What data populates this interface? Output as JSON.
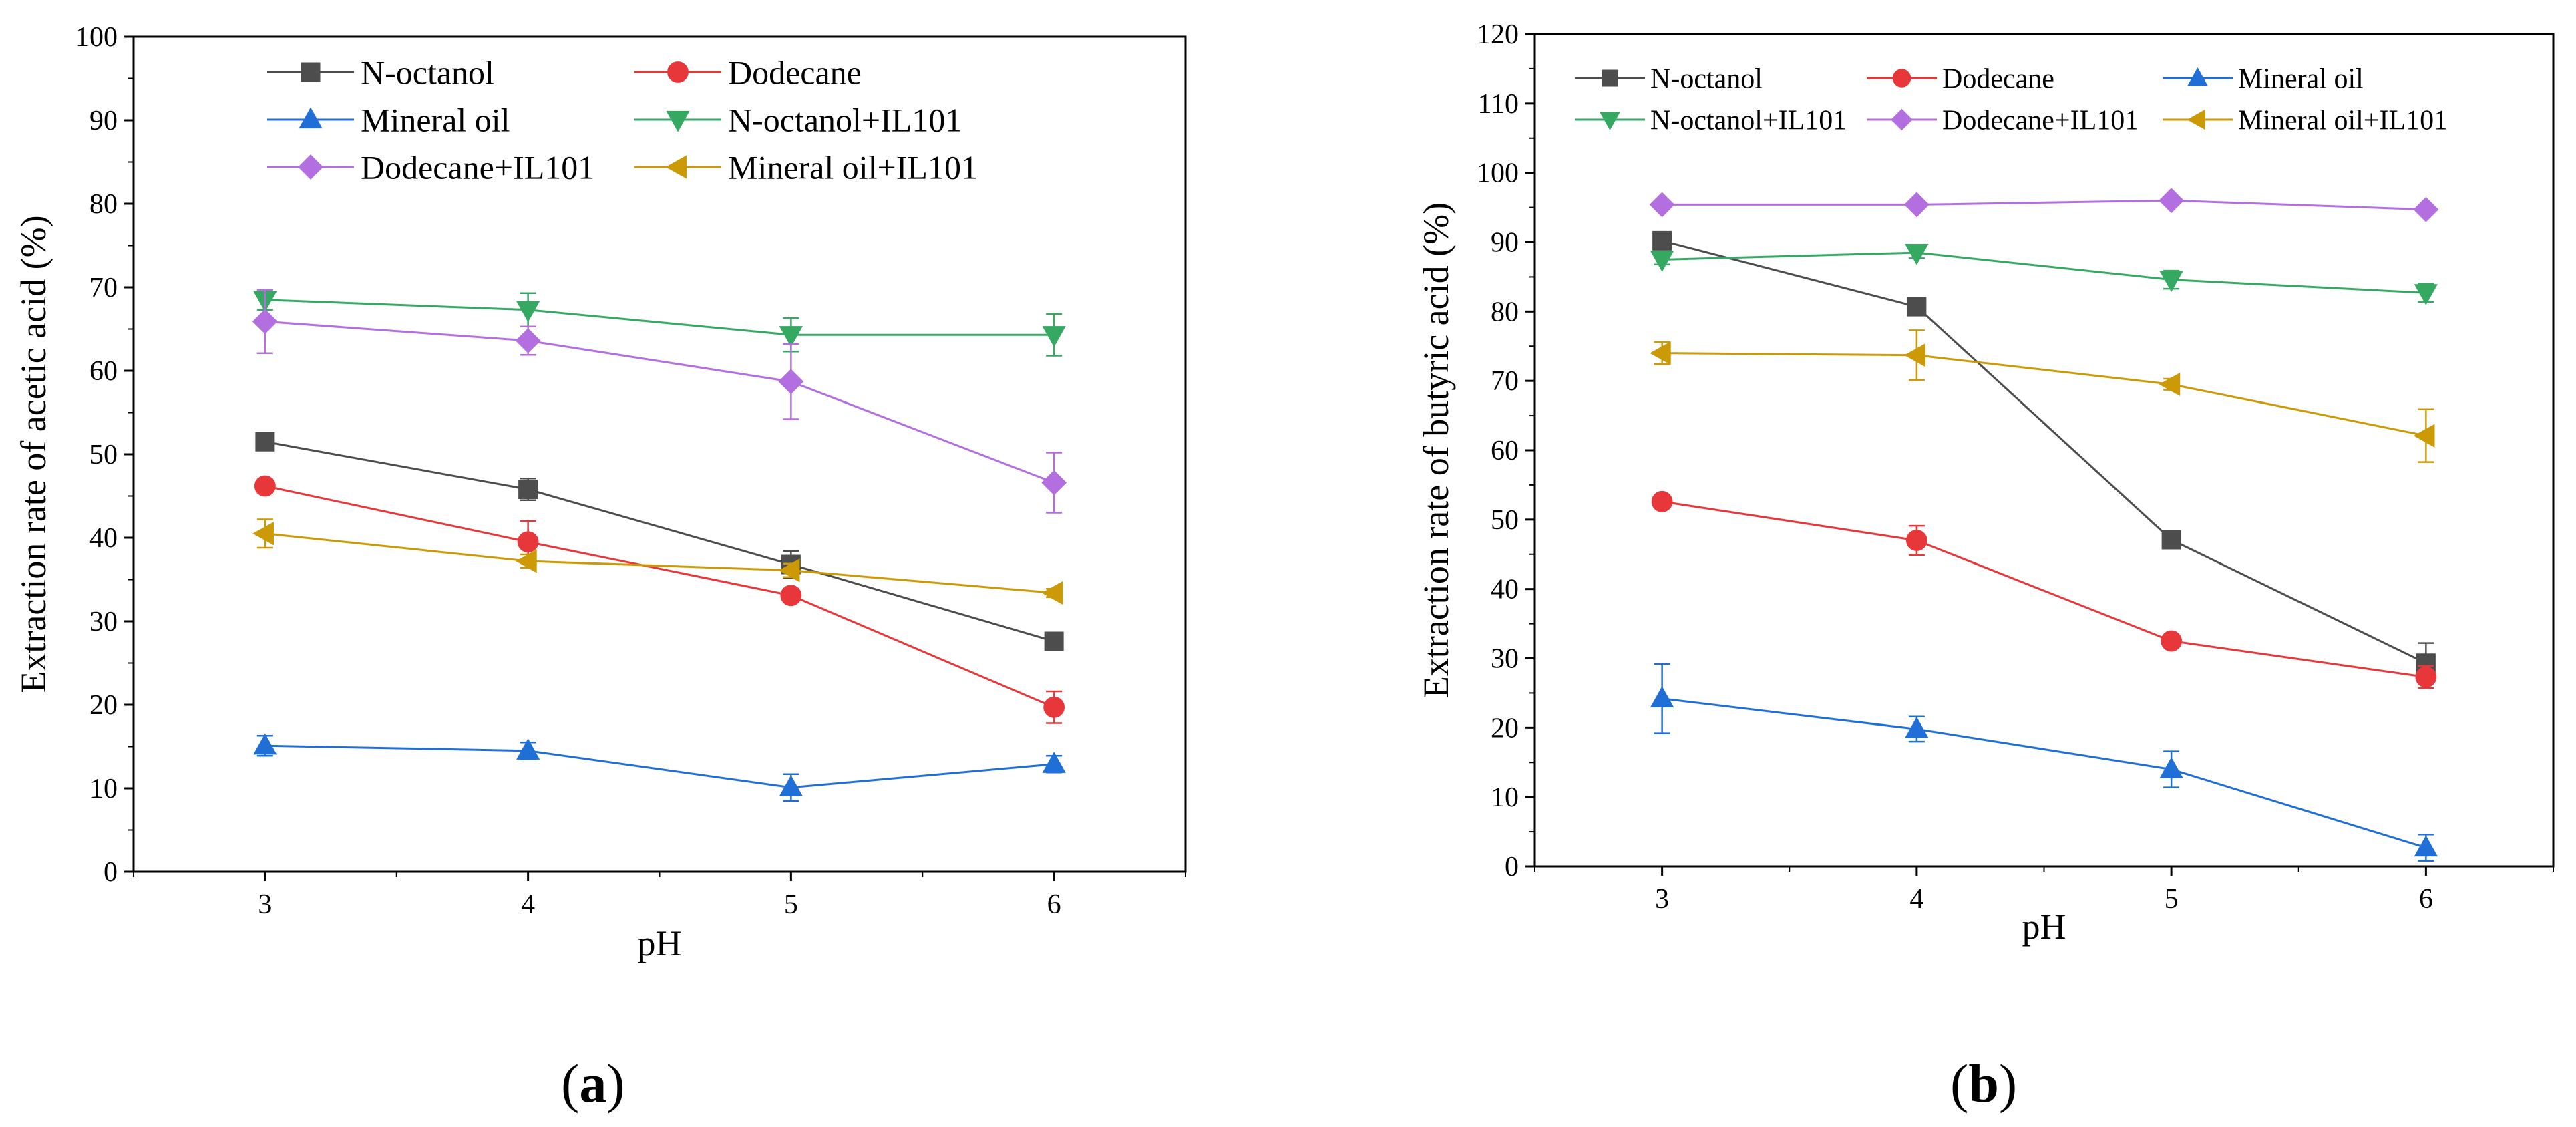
{
  "chart_data": [
    {
      "type": "line",
      "panel": "(a)",
      "panel_letter": "a",
      "xlabel": "pH",
      "ylabel": "Extraction rate of acetic acid (%)",
      "x": [
        3,
        4,
        5,
        6
      ],
      "xlim": [
        2.5,
        6.5
      ],
      "ylim": [
        0,
        100
      ],
      "yticks": [
        0,
        10,
        20,
        30,
        40,
        50,
        60,
        70,
        80,
        90,
        100
      ],
      "series": [
        {
          "name": "N-octanol",
          "color": "#4d4d4d",
          "marker": "square",
          "values": [
            51.5,
            45.8,
            36.8,
            27.6
          ],
          "errors": [
            0.8,
            1.3,
            1.6,
            0.6
          ]
        },
        {
          "name": "Dodecane",
          "color": "#e8373a",
          "marker": "circle",
          "values": [
            46.2,
            39.5,
            33.1,
            19.7
          ],
          "errors": [
            0.8,
            2.5,
            0.8,
            1.9
          ]
        },
        {
          "name": "Mineral oil",
          "color": "#1f6fd6",
          "marker": "triangle-up",
          "values": [
            15.1,
            14.5,
            10.1,
            12.9
          ],
          "errors": [
            1.2,
            1.0,
            1.6,
            1.0
          ]
        },
        {
          "name": "N-octanol+IL101",
          "color": "#35a862",
          "marker": "triangle-down",
          "values": [
            68.5,
            67.3,
            64.3,
            64.3
          ],
          "errors": [
            1.2,
            2.0,
            2.0,
            2.5
          ]
        },
        {
          "name": "Dodecane+IL101",
          "color": "#b36fe0",
          "marker": "diamond",
          "values": [
            65.9,
            63.6,
            58.7,
            46.6
          ],
          "errors": [
            3.8,
            1.7,
            4.5,
            3.6
          ]
        },
        {
          "name": "Mineral oil+IL101",
          "color": "#cc9a06",
          "marker": "triangle-left",
          "values": [
            40.5,
            37.2,
            36.1,
            33.4
          ],
          "errors": [
            1.7,
            0.8,
            0.8,
            0.5
          ]
        }
      ]
    },
    {
      "type": "line",
      "panel": "(b)",
      "panel_letter": "b",
      "xlabel": "pH",
      "ylabel": "Extraction rate of butyric acid (%)",
      "x": [
        3,
        4,
        5,
        6
      ],
      "xlim": [
        2.5,
        6.5
      ],
      "ylim": [
        0,
        120
      ],
      "yticks": [
        0,
        10,
        20,
        30,
        40,
        50,
        60,
        70,
        80,
        90,
        100,
        110,
        120
      ],
      "series": [
        {
          "name": "N-octanol",
          "color": "#4d4d4d",
          "marker": "square",
          "values": [
            90.2,
            80.7,
            47.1,
            29.3
          ],
          "errors": [
            1.0,
            1.0,
            0.8,
            2.9
          ]
        },
        {
          "name": "Dodecane",
          "color": "#e8373a",
          "marker": "circle",
          "values": [
            52.6,
            47.0,
            32.5,
            27.3
          ],
          "errors": [
            0.6,
            2.1,
            0.7,
            1.6
          ]
        },
        {
          "name": "Mineral oil",
          "color": "#1f6fd6",
          "marker": "triangle-up",
          "values": [
            24.2,
            19.8,
            14.0,
            2.7
          ],
          "errors": [
            5.0,
            1.8,
            2.6,
            1.9
          ]
        },
        {
          "name": "N-octanol+IL101",
          "color": "#35a862",
          "marker": "triangle-down",
          "values": [
            87.5,
            88.5,
            84.6,
            82.7
          ],
          "errors": [
            0.7,
            0.8,
            1.3,
            1.3
          ]
        },
        {
          "name": "Dodecane+IL101",
          "color": "#b36fe0",
          "marker": "diamond",
          "values": [
            95.4,
            95.4,
            96.0,
            94.7
          ],
          "errors": [
            0.5,
            0.5,
            0.5,
            0.5
          ]
        },
        {
          "name": "Mineral oil+IL101",
          "color": "#cc9a06",
          "marker": "triangle-left",
          "values": [
            74.0,
            73.7,
            69.5,
            62.1
          ],
          "errors": [
            1.6,
            3.6,
            0.8,
            3.8
          ]
        }
      ]
    }
  ]
}
